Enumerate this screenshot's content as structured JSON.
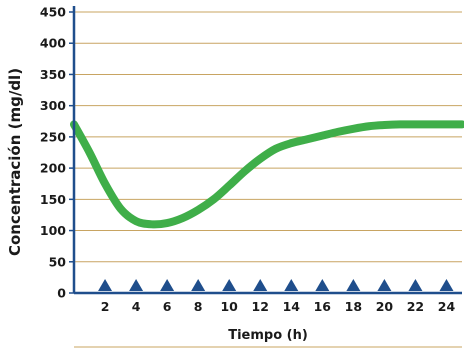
{
  "chart_data": {
    "type": "line",
    "xlabel": "Tiempo (h)",
    "ylabel": "Concentración (mg/dl)",
    "xlim": [
      0,
      25
    ],
    "ylim": [
      0,
      450
    ],
    "x_ticks": [
      "2",
      "4",
      "6",
      "8",
      "10",
      "12",
      "14",
      "16",
      "18",
      "20",
      "22",
      "24"
    ],
    "y_ticks": [
      "0",
      "50",
      "100",
      "150",
      "200",
      "250",
      "300",
      "350",
      "400",
      "450"
    ],
    "grid": "horizontal",
    "marker_times": [
      2,
      4,
      6,
      8,
      10,
      12,
      14,
      16,
      18,
      20,
      22,
      24
    ],
    "series": [
      {
        "x": [
          0,
          1,
          2,
          3,
          4,
          5,
          6,
          7,
          8,
          9,
          10,
          11,
          12,
          13,
          14,
          15,
          16,
          17,
          18,
          19,
          20,
          21,
          22,
          23,
          24,
          25
        ],
        "y": [
          270,
          225,
          175,
          135,
          115,
          110,
          112,
          120,
          133,
          150,
          172,
          195,
          215,
          231,
          240,
          246,
          252,
          258,
          263,
          267,
          269,
          270,
          270,
          270,
          270,
          270
        ]
      }
    ],
    "colors": {
      "line": "#3fae49",
      "grid": "#c8a462",
      "axis": "#1f4e8c",
      "marker": "#1f4e8c",
      "baseline": "#c8a462"
    }
  }
}
